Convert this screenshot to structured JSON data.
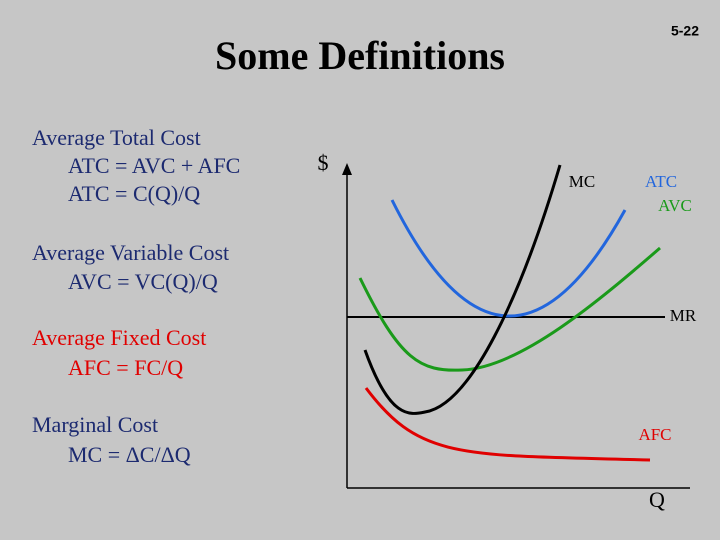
{
  "page_number": "5-22",
  "title": "Some Definitions",
  "definitions": [
    {
      "term": "Average Total Cost",
      "formulas": [
        "ATC = AVC + AFC",
        "ATC = C(Q)/Q"
      ]
    },
    {
      "term": "Average Variable Cost",
      "formulas": [
        "AVC = VC(Q)/Q"
      ]
    },
    {
      "term": "Average Fixed Cost",
      "formulas": [
        "AFC = FC/Q"
      ]
    },
    {
      "term": "Marginal Cost",
      "formulas": [
        "MC = ΔC/ΔQ"
      ]
    }
  ],
  "diagram": {
    "y_axis_label": "$",
    "x_axis_label": "Q",
    "curve_labels": {
      "mc": "MC",
      "atc": "ATC",
      "avc": "AVC",
      "mr": "MR",
      "afc": "AFC"
    }
  }
}
